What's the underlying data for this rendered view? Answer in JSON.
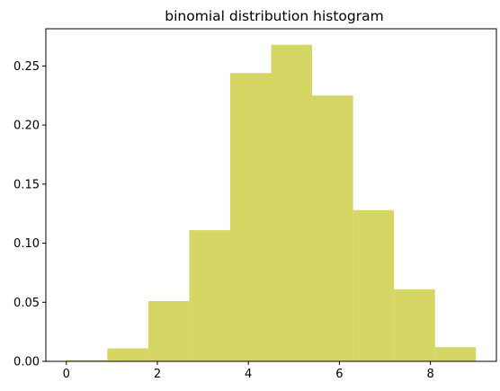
{
  "chart_data": {
    "type": "bar",
    "title": "binomial distribution histogram",
    "xlabel": "",
    "ylabel": "",
    "bar_color": "#d6d665",
    "bin_edges": [
      0.0,
      0.9,
      1.8,
      2.7,
      3.6,
      4.5,
      5.4,
      6.3,
      7.2,
      8.1,
      9.0
    ],
    "values": [
      0.001,
      0.011,
      0.051,
      0.111,
      0.244,
      0.268,
      0.225,
      0.128,
      0.061,
      0.012
    ],
    "xlim": [
      -0.45,
      9.45
    ],
    "ylim": [
      0,
      0.2815
    ],
    "xticks": [
      0,
      2,
      4,
      6,
      8
    ],
    "xtick_labels": [
      "0",
      "2",
      "4",
      "6",
      "8"
    ],
    "yticks": [
      0.0,
      0.05,
      0.1,
      0.15,
      0.2,
      0.25
    ],
    "ytick_labels": [
      "0.00",
      "0.05",
      "0.10",
      "0.15",
      "0.20",
      "0.25"
    ],
    "grid": false,
    "legend": "none"
  }
}
